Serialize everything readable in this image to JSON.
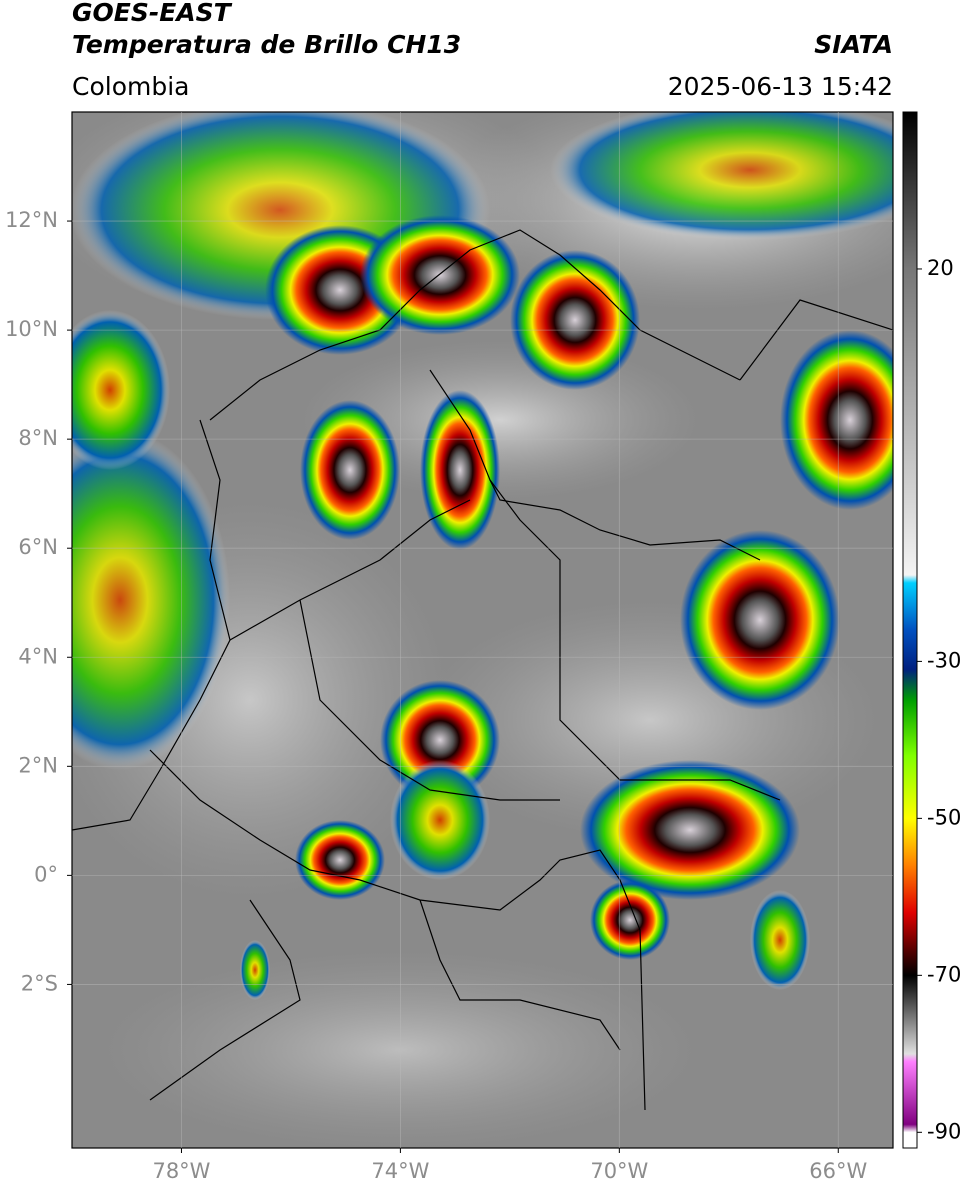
{
  "header": {
    "title": "GOES-EAST",
    "subtitle": "Temperatura de Brillo CH13",
    "source": "SIATA",
    "region": "Colombia",
    "datetime": "2025-06-13 15:42"
  },
  "map": {
    "xlim": [
      -80,
      -65
    ],
    "ylim": [
      -5,
      14
    ],
    "xticks": [
      {
        "value": -78,
        "label": "78°W"
      },
      {
        "value": -74,
        "label": "74°W"
      },
      {
        "value": -70,
        "label": "70°W"
      },
      {
        "value": -66,
        "label": "66°W"
      }
    ],
    "yticks": [
      {
        "value": 12,
        "label": "12°N"
      },
      {
        "value": 10,
        "label": "10°N"
      },
      {
        "value": 8,
        "label": "8°N"
      },
      {
        "value": 6,
        "label": "6°N"
      },
      {
        "value": 4,
        "label": "4°N"
      },
      {
        "value": 2,
        "label": "2°N"
      },
      {
        "value": 0,
        "label": "0°"
      },
      {
        "value": -2,
        "label": "2°S"
      }
    ],
    "grid": true
  },
  "colorbar": {
    "clim": [
      40,
      -92
    ],
    "ticks": [
      20,
      -30,
      -50,
      -70,
      -90
    ],
    "stops": [
      {
        "value": 40,
        "color": "#000000"
      },
      {
        "value": 20,
        "color": "#777777"
      },
      {
        "value": -19,
        "color": "#f4f4f4"
      },
      {
        "value": -20,
        "color": "#00d0ff"
      },
      {
        "value": -26,
        "color": "#0050c0"
      },
      {
        "value": -31,
        "color": "#002080"
      },
      {
        "value": -35,
        "color": "#00a000"
      },
      {
        "value": -42,
        "color": "#80ff00"
      },
      {
        "value": -50,
        "color": "#ffff00"
      },
      {
        "value": -56,
        "color": "#ff8000"
      },
      {
        "value": -62,
        "color": "#e00000"
      },
      {
        "value": -67,
        "color": "#500000"
      },
      {
        "value": -70,
        "color": "#000000"
      },
      {
        "value": -80,
        "color": "#e0e0e0"
      },
      {
        "value": -81,
        "color": "#ff80ff"
      },
      {
        "value": -89,
        "color": "#800080"
      },
      {
        "value": -90,
        "color": "#ffffff"
      }
    ]
  }
}
